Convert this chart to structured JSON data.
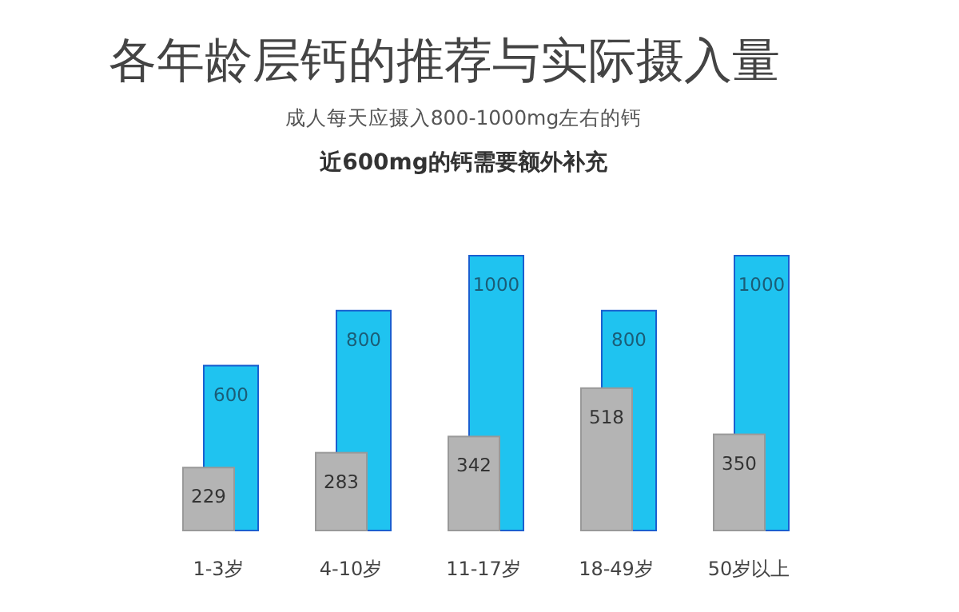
{
  "chart_data": {
    "type": "bar",
    "title": "各年龄层钙的推荐与实际摄入量",
    "subtitle": "成人每天应摄入800-1000mg左右的钙",
    "annotations": [
      "近600mg的钙需要额外补充"
    ],
    "categories": [
      "1-3岁",
      "4-10岁",
      "11-17岁",
      "18-49岁",
      "50岁以上"
    ],
    "series": [
      {
        "color": "#1fc3f0",
        "values": [
          600,
          800,
          1000,
          800,
          1000
        ]
      },
      {
        "color": "#b4b4b4",
        "values": [
          229,
          283,
          342,
          518,
          350
        ]
      }
    ],
    "data_labels": true
  }
}
